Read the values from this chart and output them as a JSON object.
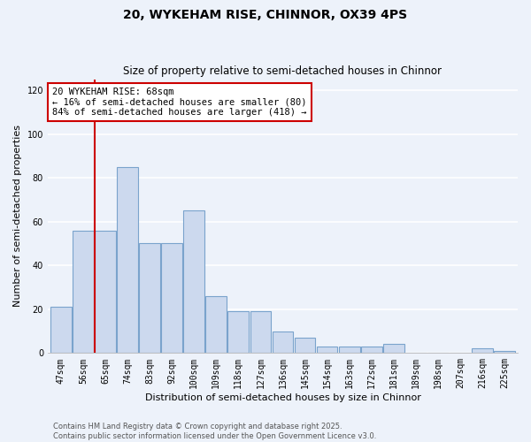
{
  "title": "20, WYKEHAM RISE, CHINNOR, OX39 4PS",
  "subtitle": "Size of property relative to semi-detached houses in Chinnor",
  "xlabel": "Distribution of semi-detached houses by size in Chinnor",
  "ylabel": "Number of semi-detached properties",
  "categories": [
    "47sqm",
    "56sqm",
    "65sqm",
    "74sqm",
    "83sqm",
    "92sqm",
    "100sqm",
    "109sqm",
    "118sqm",
    "127sqm",
    "136sqm",
    "145sqm",
    "154sqm",
    "163sqm",
    "172sqm",
    "181sqm",
    "189sqm",
    "198sqm",
    "207sqm",
    "216sqm",
    "225sqm"
  ],
  "values": [
    21,
    56,
    56,
    85,
    50,
    50,
    65,
    26,
    19,
    19,
    10,
    7,
    3,
    3,
    3,
    4,
    0,
    0,
    0,
    2,
    1
  ],
  "bar_color": "#ccd9ee",
  "bar_edge_color": "#7aa3cc",
  "annotation_text_line1": "20 WYKEHAM RISE: 68sqm",
  "annotation_text_line2": "← 16% of semi-detached houses are smaller (80)",
  "annotation_text_line3": "84% of semi-detached houses are larger (418) →",
  "annotation_box_color": "#ffffff",
  "annotation_box_edge_color": "#cc0000",
  "property_line_x": 1.5,
  "ylim": [
    0,
    125
  ],
  "yticks": [
    0,
    20,
    40,
    60,
    80,
    100,
    120
  ],
  "footer1": "Contains HM Land Registry data © Crown copyright and database right 2025.",
  "footer2": "Contains public sector information licensed under the Open Government Licence v3.0.",
  "background_color": "#edf2fa",
  "grid_color": "#ffffff",
  "title_fontsize": 10,
  "subtitle_fontsize": 8.5,
  "axis_label_fontsize": 8,
  "tick_fontsize": 7,
  "footer_fontsize": 6
}
